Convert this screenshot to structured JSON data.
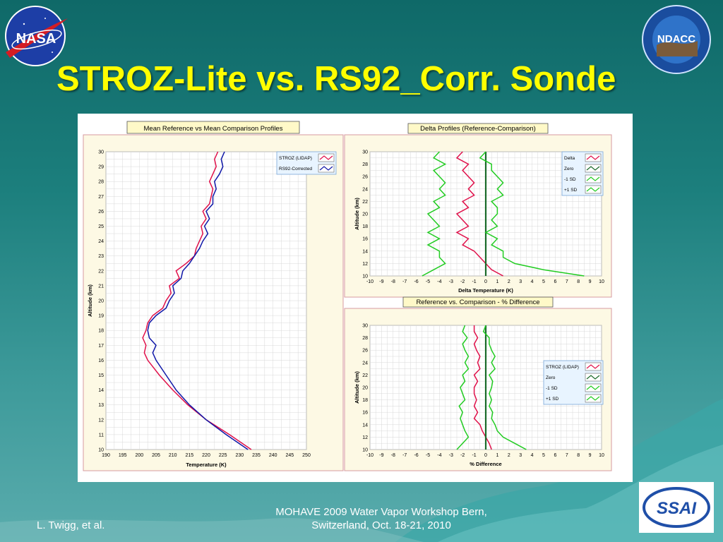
{
  "slide": {
    "title": "STROZ-Lite vs. RS92_Corr. Sonde",
    "footer_left": "L. Twigg, et al.",
    "footer_center_line1": "MOHAVE 2009 Water Vapor Workshop Bern,",
    "footer_center_line2": "Switzerland, Oct. 18-21, 2010",
    "logos": {
      "nasa": "NASA",
      "ndacc": "NDACC",
      "ssai": "SSAI"
    }
  },
  "chart_data": [
    {
      "type": "line",
      "title": "Mean Reference vs Mean Comparison Profiles",
      "xlabel": "Temperature (K)",
      "ylabel": "Altitude (km)",
      "xlim": [
        190,
        250
      ],
      "ylim": [
        10,
        30
      ],
      "x_ticks": [
        "190",
        "195",
        "200",
        "205",
        "210",
        "215",
        "220",
        "225",
        "230",
        "235",
        "240",
        "245",
        "250"
      ],
      "y_ticks": [
        "10",
        "11",
        "12",
        "13",
        "14",
        "15",
        "16",
        "17",
        "18",
        "19",
        "20",
        "21",
        "22",
        "23",
        "24",
        "25",
        "26",
        "27",
        "28",
        "29",
        "30"
      ],
      "grid": true,
      "legend_placement": "top-right",
      "series": [
        {
          "name": "STROZ (LIDAP)",
          "color": "#e0104a",
          "points": [
            [
              233.5,
              10
            ],
            [
              227,
              11
            ],
            [
              220,
              12
            ],
            [
              214.5,
              13
            ],
            [
              210,
              14
            ],
            [
              206,
              15
            ],
            [
              202.5,
              16
            ],
            [
              201.5,
              16.5
            ],
            [
              202,
              17
            ],
            [
              201,
              17.5
            ],
            [
              202,
              18
            ],
            [
              202.5,
              18.5
            ],
            [
              204,
              19
            ],
            [
              207,
              19.5
            ],
            [
              208,
              20
            ],
            [
              209.5,
              20.5
            ],
            [
              209,
              21
            ],
            [
              212,
              21.5
            ],
            [
              211,
              22
            ],
            [
              214,
              22.5
            ],
            [
              216.5,
              23
            ],
            [
              217,
              23.5
            ],
            [
              218,
              24
            ],
            [
              219,
              24.5
            ],
            [
              218.5,
              25
            ],
            [
              220,
              25.5
            ],
            [
              219,
              26
            ],
            [
              221,
              26.5
            ],
            [
              221.5,
              27
            ],
            [
              222,
              27.5
            ],
            [
              221,
              28
            ],
            [
              222,
              28.5
            ],
            [
              223,
              29
            ],
            [
              222.5,
              29.5
            ],
            [
              223.5,
              30
            ]
          ]
        },
        {
          "name": "RS92-Corrected",
          "color": "#1018a8",
          "points": [
            [
              232.5,
              10
            ],
            [
              226,
              11
            ],
            [
              220,
              12
            ],
            [
              215,
              13
            ],
            [
              211,
              14
            ],
            [
              208,
              15
            ],
            [
              205,
              16
            ],
            [
              204,
              16.5
            ],
            [
              205,
              17
            ],
            [
              203,
              17.5
            ],
            [
              202.5,
              18
            ],
            [
              203,
              18.5
            ],
            [
              205,
              19
            ],
            [
              208,
              19.5
            ],
            [
              209,
              20
            ],
            [
              210.5,
              20.5
            ],
            [
              210,
              21
            ],
            [
              212.5,
              21.5
            ],
            [
              213,
              22
            ],
            [
              215,
              22.5
            ],
            [
              216.5,
              23
            ],
            [
              218,
              23.5
            ],
            [
              219,
              24
            ],
            [
              220.5,
              24.5
            ],
            [
              219.5,
              25
            ],
            [
              221,
              25.5
            ],
            [
              220,
              26
            ],
            [
              222,
              26.5
            ],
            [
              222,
              27
            ],
            [
              223,
              27.5
            ],
            [
              222.5,
              28
            ],
            [
              224,
              28.5
            ],
            [
              225,
              29
            ],
            [
              224.5,
              29.5
            ],
            [
              225.5,
              30
            ]
          ]
        }
      ]
    },
    {
      "type": "line",
      "title": "Delta Profiles (Reference-Comparison)",
      "xlabel": "Delta Temperature (K)",
      "ylabel": "Altitude (km)",
      "xlim": [
        -10,
        10
      ],
      "ylim": [
        10,
        30
      ],
      "x_ticks": [
        "-10",
        "-9",
        "-8",
        "-7",
        "-6",
        "-5",
        "-4",
        "-3",
        "-2",
        "-1",
        "0",
        "1",
        "2",
        "3",
        "4",
        "5",
        "6",
        "7",
        "8",
        "9",
        "10"
      ],
      "y_ticks": [
        "10",
        "12",
        "14",
        "16",
        "18",
        "20",
        "22",
        "24",
        "26",
        "28",
        "30"
      ],
      "grid": true,
      "legend_placement": "top-right",
      "series": [
        {
          "name": "Delta",
          "color": "#e0104a",
          "points": [
            [
              1.5,
              10
            ],
            [
              0.5,
              11
            ],
            [
              0,
              12
            ],
            [
              -0.5,
              13
            ],
            [
              -1,
              14
            ],
            [
              -2,
              15
            ],
            [
              -1.5,
              16
            ],
            [
              -2.5,
              17
            ],
            [
              -1.5,
              18
            ],
            [
              -2,
              19
            ],
            [
              -2.5,
              20
            ],
            [
              -1.5,
              21
            ],
            [
              -2,
              22
            ],
            [
              -1,
              23
            ],
            [
              -1.5,
              24
            ],
            [
              -1,
              25
            ],
            [
              -1.5,
              26
            ],
            [
              -2,
              27
            ],
            [
              -1.5,
              28
            ],
            [
              -2.5,
              29
            ],
            [
              -2,
              30
            ]
          ]
        },
        {
          "name": "Zero",
          "color": "#1a6b2a",
          "points": [
            [
              0,
              10
            ],
            [
              0,
              30
            ]
          ]
        },
        {
          "name": "-1 SD",
          "color": "#22cc22",
          "points": [
            [
              -5.5,
              10
            ],
            [
              -4.5,
              11
            ],
            [
              -3.5,
              12
            ],
            [
              -4,
              13
            ],
            [
              -4,
              14
            ],
            [
              -5,
              15
            ],
            [
              -4,
              16
            ],
            [
              -5,
              17
            ],
            [
              -4,
              18
            ],
            [
              -4.5,
              19
            ],
            [
              -5,
              20
            ],
            [
              -4,
              21
            ],
            [
              -4.5,
              22
            ],
            [
              -3.5,
              23
            ],
            [
              -4,
              24
            ],
            [
              -3.5,
              25
            ],
            [
              -4,
              26
            ],
            [
              -4.5,
              27
            ],
            [
              -3.5,
              28
            ],
            [
              -4.5,
              29
            ],
            [
              -4,
              30
            ]
          ]
        },
        {
          "name": "+1 SD",
          "color": "#22cc22",
          "points": [
            [
              8.5,
              10
            ],
            [
              5,
              11
            ],
            [
              2.5,
              12
            ],
            [
              1.5,
              13
            ],
            [
              1.5,
              14
            ],
            [
              0.5,
              15
            ],
            [
              1,
              16
            ],
            [
              0,
              17
            ],
            [
              1,
              18
            ],
            [
              0.5,
              19
            ],
            [
              1,
              20
            ],
            [
              1,
              21
            ],
            [
              0.5,
              22
            ],
            [
              1.5,
              23
            ],
            [
              1,
              24
            ],
            [
              1.5,
              25
            ],
            [
              1,
              26
            ],
            [
              0.5,
              27
            ],
            [
              0.5,
              28
            ],
            [
              -0.5,
              29
            ],
            [
              0,
              30
            ]
          ]
        }
      ]
    },
    {
      "type": "line",
      "title": "Reference vs. Comparison - % Difference",
      "xlabel": "% Difference",
      "ylabel": "Altitude (km)",
      "xlim": [
        -10,
        10
      ],
      "ylim": [
        10,
        30
      ],
      "x_ticks": [
        "-10",
        "-9",
        "-8",
        "-7",
        "-6",
        "-5",
        "-4",
        "-3",
        "-2",
        "-1",
        "0",
        "1",
        "2",
        "3",
        "4",
        "5",
        "6",
        "7",
        "8",
        "9",
        "10"
      ],
      "y_ticks": [
        "10",
        "12",
        "14",
        "16",
        "18",
        "20",
        "22",
        "24",
        "26",
        "28",
        "30"
      ],
      "grid": true,
      "legend_placement": "right",
      "series": [
        {
          "name": "STROZ (LIDAP)",
          "color": "#e0104a",
          "points": [
            [
              0.5,
              10
            ],
            [
              0.3,
              11
            ],
            [
              0,
              12
            ],
            [
              -0.3,
              13
            ],
            [
              -0.5,
              14
            ],
            [
              -1,
              15
            ],
            [
              -0.7,
              16
            ],
            [
              -1,
              17
            ],
            [
              -0.8,
              18
            ],
            [
              -1,
              19
            ],
            [
              -1,
              20
            ],
            [
              -0.7,
              21
            ],
            [
              -1,
              22
            ],
            [
              -0.5,
              23
            ],
            [
              -0.7,
              24
            ],
            [
              -0.5,
              25
            ],
            [
              -0.8,
              26
            ],
            [
              -1,
              27
            ],
            [
              -0.7,
              28
            ],
            [
              -1,
              29
            ],
            [
              -1,
              30
            ]
          ]
        },
        {
          "name": "Zero",
          "color": "#1a6b2a",
          "points": [
            [
              0,
              10
            ],
            [
              0,
              30
            ]
          ]
        },
        {
          "name": "-1 SD",
          "color": "#22cc22",
          "points": [
            [
              -2.5,
              10
            ],
            [
              -2,
              11
            ],
            [
              -1.5,
              12
            ],
            [
              -1.8,
              13
            ],
            [
              -2,
              14
            ],
            [
              -2.2,
              15
            ],
            [
              -2,
              16
            ],
            [
              -2.3,
              17
            ],
            [
              -1.8,
              18
            ],
            [
              -2,
              19
            ],
            [
              -2.2,
              20
            ],
            [
              -1.8,
              21
            ],
            [
              -2,
              22
            ],
            [
              -1.5,
              23
            ],
            [
              -1.8,
              24
            ],
            [
              -1.5,
              25
            ],
            [
              -1.8,
              26
            ],
            [
              -2,
              27
            ],
            [
              -1.6,
              28
            ],
            [
              -2,
              29
            ],
            [
              -1.8,
              30
            ]
          ]
        },
        {
          "name": "+1 SD",
          "color": "#22cc22",
          "points": [
            [
              3.5,
              10
            ],
            [
              2.5,
              11
            ],
            [
              1.5,
              12
            ],
            [
              1,
              13
            ],
            [
              0.8,
              14
            ],
            [
              0.5,
              15
            ],
            [
              0.6,
              16
            ],
            [
              0.3,
              17
            ],
            [
              0.5,
              18
            ],
            [
              0.3,
              19
            ],
            [
              0.5,
              20
            ],
            [
              0.6,
              21
            ],
            [
              0.3,
              22
            ],
            [
              0.8,
              23
            ],
            [
              0.5,
              24
            ],
            [
              0.8,
              25
            ],
            [
              0.5,
              26
            ],
            [
              0.3,
              27
            ],
            [
              0.3,
              28
            ],
            [
              -0.2,
              29
            ],
            [
              0,
              30
            ]
          ]
        }
      ]
    }
  ]
}
